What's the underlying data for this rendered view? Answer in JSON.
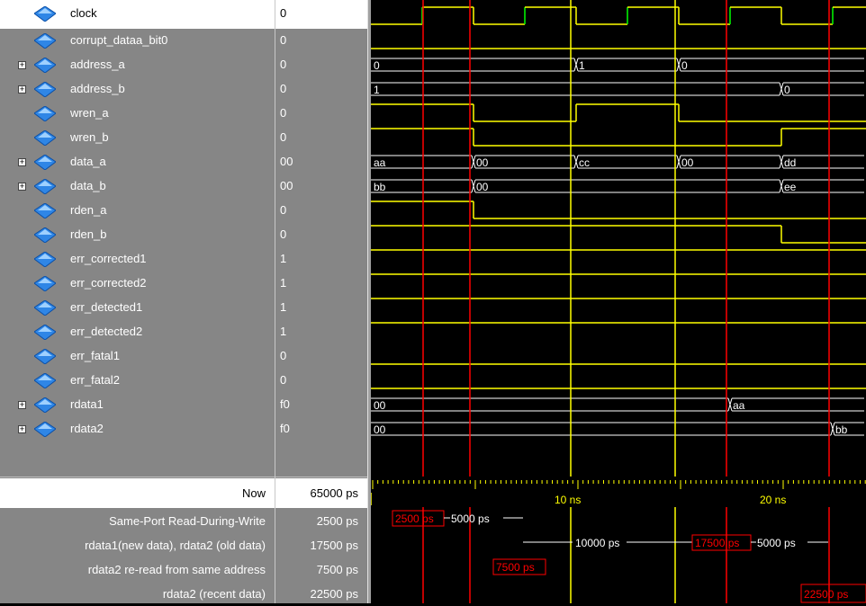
{
  "signals": [
    {
      "name": "clock",
      "value": "0",
      "expandable": false,
      "selected": true
    },
    {
      "name": "corrupt_dataa_bit0",
      "value": "0",
      "expandable": false
    },
    {
      "name": "address_a",
      "value": "0",
      "expandable": true
    },
    {
      "name": "address_b",
      "value": "0",
      "expandable": true
    },
    {
      "name": "wren_a",
      "value": "0",
      "expandable": false
    },
    {
      "name": "wren_b",
      "value": "0",
      "expandable": false
    },
    {
      "name": "data_a",
      "value": "00",
      "expandable": true
    },
    {
      "name": "data_b",
      "value": "00",
      "expandable": true
    },
    {
      "name": "rden_a",
      "value": "0",
      "expandable": false
    },
    {
      "name": "rden_b",
      "value": "0",
      "expandable": false
    },
    {
      "name": "err_corrected1",
      "value": "1",
      "expandable": false
    },
    {
      "name": "err_corrected2",
      "value": "1",
      "expandable": false
    },
    {
      "name": "err_detected1",
      "value": "1",
      "expandable": false
    },
    {
      "name": "err_detected2",
      "value": "1",
      "expandable": false
    },
    {
      "name": "err_fatal1",
      "value": "0",
      "expandable": false
    },
    {
      "name": "err_fatal2",
      "value": "0",
      "expandable": false
    },
    {
      "name": "rdata1",
      "value": "f0",
      "expandable": true
    },
    {
      "name": "rdata2",
      "value": "f0",
      "expandable": true
    }
  ],
  "bus_labels": {
    "address_a": [
      "0",
      "1",
      "0"
    ],
    "address_b": [
      "1",
      "0"
    ],
    "data_a": [
      "aa",
      "00",
      "cc",
      "00",
      "dd"
    ],
    "data_b": [
      "bb",
      "00",
      "ee"
    ],
    "rdata1": [
      "00",
      "aa"
    ],
    "rdata2": [
      "00",
      "bb"
    ]
  },
  "now": {
    "label": "Now",
    "value": "65000 ps"
  },
  "cursors": [
    {
      "label": "Same-Port Read-During-Write",
      "value": "2500 ps"
    },
    {
      "label": "rdata1(new data), rdata2 (old data)",
      "value": "17500 ps"
    },
    {
      "label": "rdata2 re-read from same address",
      "value": "7500 ps"
    },
    {
      "label": "rdata2 (recent data)",
      "value": "22500 ps"
    }
  ],
  "timeline": {
    "tick_labels": [
      "10 ns",
      "20 ns"
    ]
  },
  "cursor_annotations": {
    "c1_box": "2500 ps",
    "c1_delta": "5000 ps",
    "c2_delta_left": "10000 ps",
    "c2_box": "17500 ps",
    "c2_delta_right": "5000 ps",
    "c3_box": "7500 ps",
    "c4_box": "22500 ps"
  },
  "colors": {
    "panel": "#868686",
    "wave": "#ffff00",
    "bus": "#ffffff",
    "clock_edge": "#00ff00",
    "cursor_red": "#ff0000",
    "cursor_yellow": "#ffff00"
  }
}
